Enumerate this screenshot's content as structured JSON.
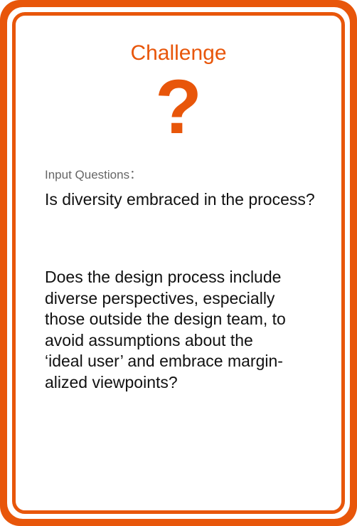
{
  "card": {
    "title": "Challenge",
    "icon": "question-mark-icon",
    "icon_glyph": "?",
    "accent_color": "#e8560a",
    "input_label": "Input Questions：",
    "question": "Is diversity embraced in the process?",
    "description_lines": [
      "Does the design process include",
      "diverse perspectives, especially",
      "those outside the design team, to",
      "avoid assumptions about the",
      "‘ideal user’ and embrace margin-",
      "alized viewpoints?"
    ]
  }
}
